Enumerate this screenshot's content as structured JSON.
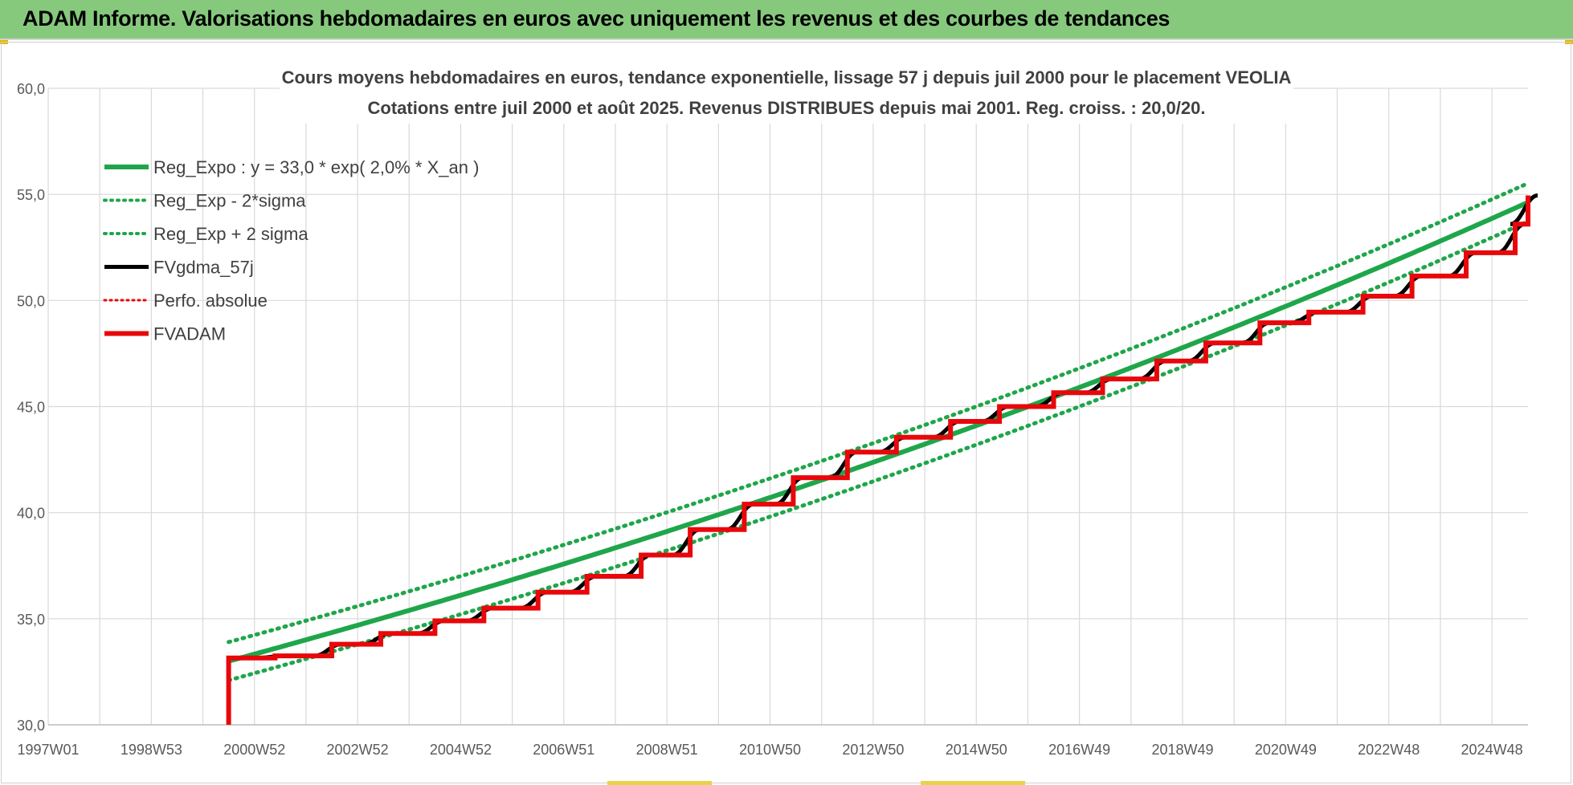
{
  "header": {
    "title": "ADAM Informe. Valorisations hebdomadaires en euros avec uniquement les revenus et des courbes de tendances"
  },
  "colors": {
    "banner": "#86c97d",
    "trend_green": "#1fa64a",
    "price_black": "#000000",
    "adam_red": "#e8070a",
    "grid": "#d9d9d9"
  },
  "chart_data": {
    "type": "line",
    "title": "Cours moyens hebdomadaires en euros, tendance exponentielle, lissage 57 j depuis juil 2000 pour le placement VEOLIA",
    "subtitle": "Cotations entre juil 2000 et août 2025. Revenus DISTRIBUES depuis mai 2001. Reg. croiss. : 20,0/20.",
    "xlabel": "",
    "ylabel": "",
    "x_tick_labels": [
      "1997W01",
      "1998W53",
      "2000W52",
      "2002W52",
      "2004W52",
      "2006W51",
      "2008W51",
      "2010W50",
      "2012W50",
      "2014W50",
      "2016W49",
      "2018W49",
      "2020W49",
      "2022W48",
      "2024W48"
    ],
    "x_range_years": [
      1997.0,
      2025.7
    ],
    "y_tick_labels": [
      "30,0",
      "35,0",
      "40,0",
      "45,0",
      "50,0",
      "55,0",
      "60,0"
    ],
    "ylim": [
      30,
      60
    ],
    "grid": true,
    "legend_position": "top-left",
    "regression": {
      "a": 33.0,
      "rate": 0.02,
      "x0": 2000.5,
      "sigma_band": 0.9
    },
    "series": [
      {
        "name": "Reg_Expo : y = 33,0 * exp( 2,0% *  X_an )",
        "color": "#1fa64a",
        "style": "solid",
        "formula": "33.0*exp(0.02*(t-2000.5))",
        "x_range": [
          2000.5,
          2025.7
        ]
      },
      {
        "name": "Reg_Exp - 2*sigma",
        "color": "#1fa64a",
        "style": "dotted",
        "formula": "regression - 0.9",
        "x_range": [
          2000.5,
          2025.7
        ]
      },
      {
        "name": "Reg_Exp + 2 sigma",
        "color": "#1fa64a",
        "style": "dotted",
        "formula": "regression + 0.9",
        "x_range": [
          2000.5,
          2025.7
        ]
      },
      {
        "name": "FVgdma_57j",
        "color": "#000000",
        "style": "solid",
        "note": "smoothed copy of FVADAM"
      },
      {
        "name": "Perfo. absolue",
        "color": "#e8070a",
        "style": "dotted",
        "note": "coincides with FVADAM"
      },
      {
        "name": "FVADAM",
        "color": "#e8070a",
        "style": "solid",
        "start": {
          "x": 2000.5,
          "y": 30.0
        },
        "steps": [
          {
            "x": 2000.5,
            "y": 33.15
          },
          {
            "x": 2001.4,
            "y": 33.25
          },
          {
            "x": 2002.5,
            "y": 33.8
          },
          {
            "x": 2003.45,
            "y": 34.3
          },
          {
            "x": 2004.5,
            "y": 34.9
          },
          {
            "x": 2005.45,
            "y": 35.5
          },
          {
            "x": 2006.5,
            "y": 36.25
          },
          {
            "x": 2007.45,
            "y": 37.0
          },
          {
            "x": 2008.5,
            "y": 38.0
          },
          {
            "x": 2009.45,
            "y": 39.2
          },
          {
            "x": 2010.5,
            "y": 40.4
          },
          {
            "x": 2011.45,
            "y": 41.65
          },
          {
            "x": 2012.5,
            "y": 42.85
          },
          {
            "x": 2013.45,
            "y": 43.55
          },
          {
            "x": 2014.5,
            "y": 44.3
          },
          {
            "x": 2015.45,
            "y": 45.0
          },
          {
            "x": 2016.5,
            "y": 45.65
          },
          {
            "x": 2017.45,
            "y": 46.3
          },
          {
            "x": 2018.5,
            "y": 47.15
          },
          {
            "x": 2019.45,
            "y": 48.0
          },
          {
            "x": 2020.5,
            "y": 48.95
          },
          {
            "x": 2021.45,
            "y": 49.45
          },
          {
            "x": 2022.5,
            "y": 50.2
          },
          {
            "x": 2023.45,
            "y": 51.15
          },
          {
            "x": 2024.5,
            "y": 52.25
          },
          {
            "x": 2025.45,
            "y": 53.6
          },
          {
            "x": 2025.7,
            "y": 54.95
          }
        ]
      }
    ]
  }
}
